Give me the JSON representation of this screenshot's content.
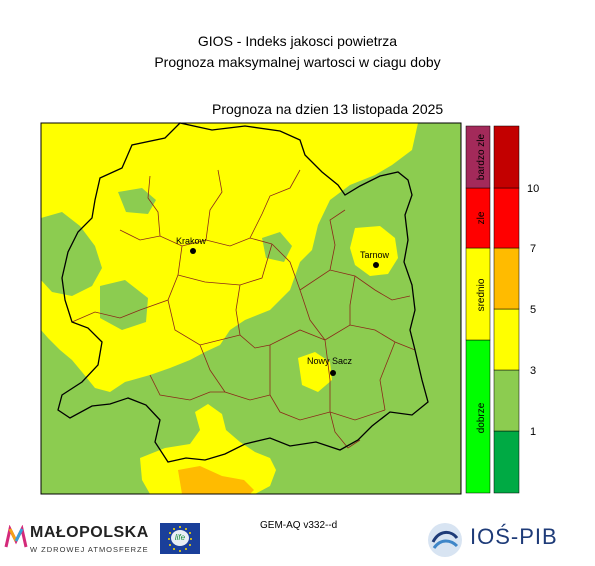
{
  "header": {
    "line1": "GIOS - Indeks jakosci powietrza",
    "line2": "Prognoza maksymalnej wartosci w ciagu doby",
    "date_line": "Prognoza na dzien  13 listopada 2025"
  },
  "cities": [
    {
      "name": "Krakow"
    },
    {
      "name": "Tarnow"
    },
    {
      "name": "Nowy Sacz"
    }
  ],
  "index_categories": [
    {
      "label": "dobrze",
      "color": "#00ff00"
    },
    {
      "label": "srednio",
      "color": "#ffff00"
    },
    {
      "label": "zle",
      "color": "#ff0000"
    },
    {
      "label": "bardzo zle",
      "color": "#a32a5a"
    }
  ],
  "colorbar": {
    "colors": [
      "#00aa44",
      "#8ccc50",
      "#ffff00",
      "#ffbb00",
      "#ff0000",
      "#c30000"
    ],
    "ticks": [
      "1",
      "3",
      "5",
      "7",
      "10"
    ]
  },
  "model_label": "GEM-AQ v332--d",
  "logos": {
    "left_word": "MAŁOPOLSKA",
    "left_sub": "W ZDROWEJ ATMOSFERZE",
    "eu_text": "life",
    "right_word": "IOŚ-PIB"
  }
}
